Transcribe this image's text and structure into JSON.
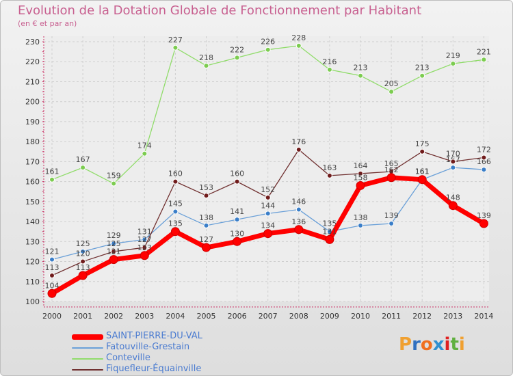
{
  "chart_data": {
    "type": "line",
    "title": "Evolution de la Dotation Globale de Fonctionnement par Habitant",
    "subtitle": "(en € et par an)",
    "x": [
      "2000",
      "2001",
      "2002",
      "2003",
      "2004",
      "2005",
      "2006",
      "2007",
      "2008",
      "2009",
      "2010",
      "2011",
      "2012",
      "2013",
      "2014"
    ],
    "ylim": [
      100,
      230
    ],
    "yticks": [
      100,
      110,
      120,
      130,
      140,
      150,
      160,
      170,
      180,
      190,
      200,
      210,
      220,
      230
    ],
    "series": [
      {
        "name": "SAINT-PIERRE-DU-VAL",
        "color": "#ff0000",
        "values": [
          104,
          113,
          121,
          123,
          135,
          127,
          130,
          134,
          136,
          131,
          158,
          162,
          161,
          148,
          139
        ]
      },
      {
        "name": "Fatouville-Grestain",
        "color": "#6aa0d8",
        "values": [
          121,
          125,
          129,
          131,
          145,
          138,
          141,
          144,
          146,
          135,
          138,
          139,
          161,
          167,
          166
        ]
      },
      {
        "name": "Conteville",
        "color": "#90dc6a",
        "values": [
          161,
          167,
          159,
          174,
          227,
          218,
          222,
          226,
          228,
          216,
          213,
          205,
          213,
          219,
          221
        ]
      },
      {
        "name": "Fiquefleur-Équainville",
        "color": "#703030",
        "values": [
          113,
          120,
          125,
          127,
          160,
          153,
          160,
          152,
          176,
          163,
          164,
          165,
          175,
          170,
          172
        ]
      }
    ],
    "labels": {
      "SAINT-PIERRE-DU-VAL": [
        "104",
        "113",
        "121",
        "123",
        "135",
        "127",
        "130",
        "134",
        "136",
        "131",
        "158",
        "162",
        "161",
        "148",
        "139"
      ],
      "Fatouville-Grestain": [
        "121",
        "125",
        "129",
        "131",
        "145",
        "138",
        "141",
        "144",
        "146",
        "135",
        "138",
        "139",
        "161",
        "167",
        "166"
      ],
      "Conteville": [
        "161",
        "167",
        "159",
        "174",
        "227",
        "218",
        "222",
        "226",
        "228",
        "216",
        "213",
        "205",
        "213",
        "219",
        "221"
      ],
      "Fiquefleur-Équainville": [
        "113",
        "120",
        "125",
        "127",
        "160",
        "153",
        "160",
        "152",
        "176",
        "163",
        "164",
        "165",
        "175",
        "170",
        "172"
      ]
    },
    "legend_position": "bottom-left",
    "grid": true
  },
  "logo": {
    "text": "Proxiti",
    "letters": [
      "P",
      "r",
      "o",
      "x",
      "i",
      "t",
      "i"
    ],
    "colors": [
      "#f0a030",
      "#3070c0",
      "#f07020",
      "#3090d0",
      "#e02020",
      "#60b040",
      "#f0a030"
    ]
  }
}
